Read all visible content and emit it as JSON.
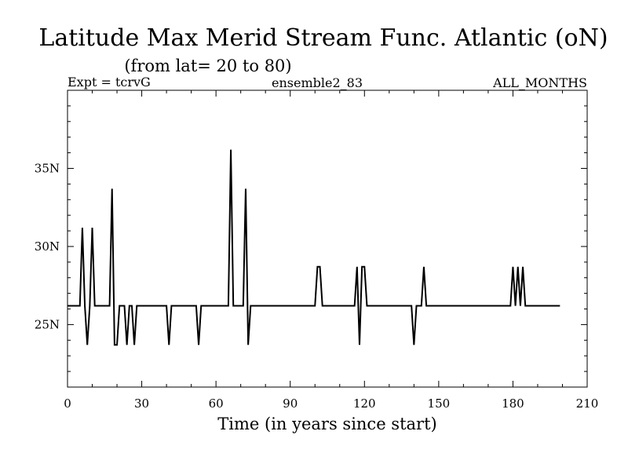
{
  "chart_data": {
    "type": "line",
    "title": "Latitude Max Merid Stream Func. Atlantic (oN)",
    "subtitle": "(from lat= 20 to 80)",
    "header_left": "Expt = tcrvG",
    "header_center": "ensemble2_83",
    "header_right": "ALL_MONTHS",
    "xlabel": "Time (in years since start)",
    "ylabel": "",
    "xlim": [
      0,
      210
    ],
    "ylim": [
      21,
      40
    ],
    "x_ticks": [
      0,
      30,
      60,
      90,
      120,
      150,
      180,
      210
    ],
    "y_ticks": [
      {
        "value": 25,
        "label": "25N"
      },
      {
        "value": 30,
        "label": "30N"
      },
      {
        "value": 35,
        "label": "35N"
      }
    ],
    "grid": false,
    "series": [
      {
        "color": "#000000",
        "x": [
          0,
          5,
          6,
          7,
          8,
          9,
          10,
          11,
          12,
          17,
          18,
          19,
          20,
          21,
          23,
          24,
          25,
          26,
          27,
          28,
          29,
          40,
          41,
          42,
          52,
          53,
          54,
          65,
          66,
          67,
          71,
          72,
          73,
          74,
          100,
          101,
          102,
          103,
          116,
          117,
          118,
          119,
          120,
          121,
          122,
          139,
          140,
          141,
          143,
          144,
          145,
          179,
          180,
          181,
          182,
          183,
          184,
          185,
          186,
          199
        ],
        "y": [
          26.2,
          26.2,
          31.2,
          26.2,
          23.7,
          26.2,
          31.2,
          26.2,
          26.2,
          26.2,
          33.7,
          23.7,
          23.7,
          26.2,
          26.2,
          23.7,
          26.2,
          26.2,
          23.7,
          26.2,
          26.2,
          26.2,
          23.7,
          26.2,
          26.2,
          23.7,
          26.2,
          26.2,
          36.2,
          26.2,
          26.2,
          33.7,
          23.7,
          26.2,
          26.2,
          28.7,
          28.7,
          26.2,
          26.2,
          28.7,
          23.7,
          28.7,
          28.7,
          26.2,
          26.2,
          26.2,
          23.7,
          26.2,
          26.2,
          28.7,
          26.2,
          26.2,
          28.7,
          26.2,
          28.7,
          26.2,
          28.7,
          26.2,
          26.2,
          26.2
        ]
      }
    ]
  }
}
